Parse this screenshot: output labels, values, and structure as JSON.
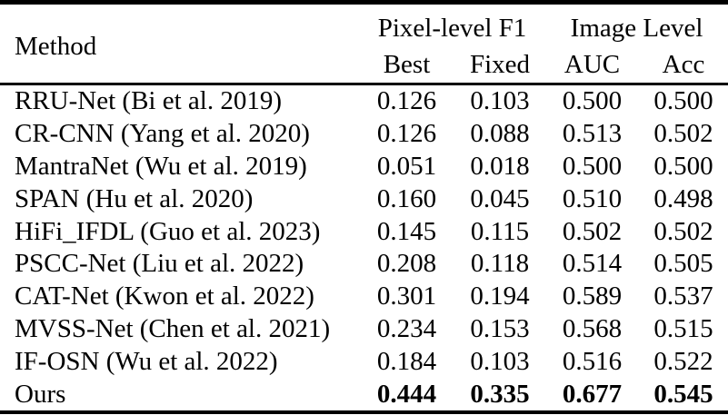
{
  "colors": {
    "background": "#ffffff",
    "text": "#000000",
    "rule": "#000000"
  },
  "table": {
    "header": {
      "method": "Method",
      "groups": [
        {
          "label": "Pixel-level F1",
          "span": 2
        },
        {
          "label": "Image Level",
          "span": 2
        }
      ],
      "subheaders": [
        "Best",
        "Fixed",
        "AUC",
        "Acc"
      ]
    },
    "rows": [
      {
        "method": "RRU-Net (Bi et al. 2019)",
        "values": [
          "0.126",
          "0.103",
          "0.500",
          "0.500"
        ],
        "bold": false
      },
      {
        "method": "CR-CNN (Yang et al. 2020)",
        "values": [
          "0.126",
          "0.088",
          "0.513",
          "0.502"
        ],
        "bold": false
      },
      {
        "method": "MantraNet (Wu et al. 2019)",
        "values": [
          "0.051",
          "0.018",
          "0.500",
          "0.500"
        ],
        "bold": false
      },
      {
        "method": "SPAN (Hu et al. 2020)",
        "values": [
          "0.160",
          "0.045",
          "0.510",
          "0.498"
        ],
        "bold": false
      },
      {
        "method": "HiFi_IFDL (Guo et al. 2023)",
        "values": [
          "0.145",
          "0.115",
          "0.502",
          "0.502"
        ],
        "bold": false
      },
      {
        "method": "PSCC-Net (Liu et al. 2022)",
        "values": [
          "0.208",
          "0.118",
          "0.514",
          "0.505"
        ],
        "bold": false
      },
      {
        "method": "CAT-Net (Kwon et al. 2022)",
        "values": [
          "0.301",
          "0.194",
          "0.589",
          "0.537"
        ],
        "bold": false
      },
      {
        "method": "MVSS-Net (Chen et al. 2021)",
        "values": [
          "0.234",
          "0.153",
          "0.568",
          "0.515"
        ],
        "bold": false
      },
      {
        "method": "IF-OSN (Wu et al. 2022)",
        "values": [
          "0.184",
          "0.103",
          "0.516",
          "0.522"
        ],
        "bold": false
      },
      {
        "method": "Ours",
        "values": [
          "0.444",
          "0.335",
          "0.677",
          "0.545"
        ],
        "bold": true
      }
    ]
  }
}
